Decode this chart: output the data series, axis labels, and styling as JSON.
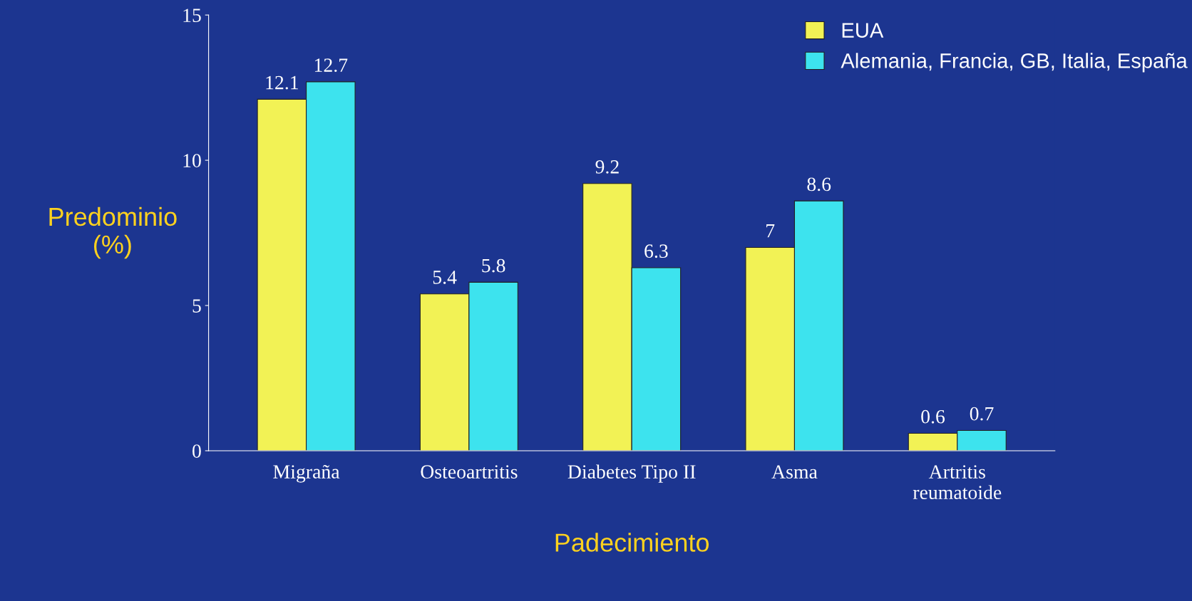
{
  "chart_data": {
    "type": "bar",
    "categories": [
      "Migraña",
      "Osteoartritis",
      "Diabetes Tipo II",
      "Asma",
      "Artritis\nreumatoide"
    ],
    "series": [
      {
        "name": "EUA",
        "color": "#f2f255",
        "values": [
          12.1,
          5.4,
          9.2,
          7,
          0.6
        ]
      },
      {
        "name": "Alemania, Francia, GB, Italia, España",
        "color": "#3de3ee",
        "values": [
          12.7,
          5.8,
          6.3,
          8.6,
          0.7
        ]
      }
    ],
    "ylabel": "Predominio\n(%)",
    "xlabel": "Padecimiento",
    "ylim": [
      0,
      15
    ],
    "yticks": [
      0,
      5,
      10,
      15
    ],
    "data_labels": true,
    "legend": "top right",
    "grid": false
  }
}
